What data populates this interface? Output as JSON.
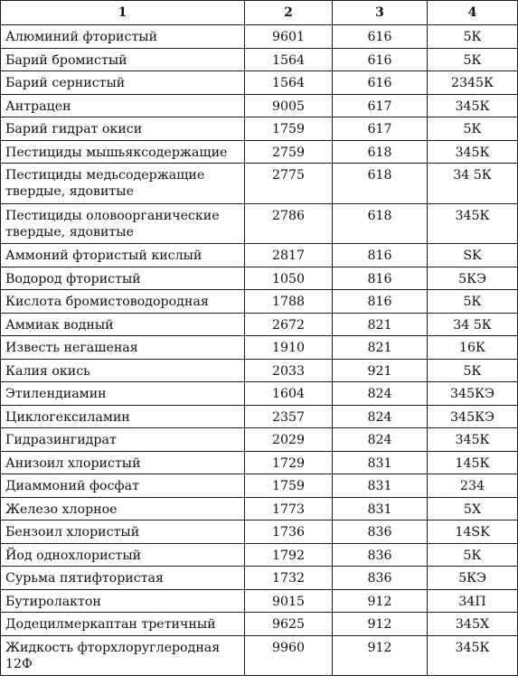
{
  "table": {
    "headers": [
      "1",
      "2",
      "3",
      "4"
    ],
    "rows": [
      {
        "name": "Алюминий фтористый",
        "c2": "9601",
        "c3": "616",
        "c4": "5К"
      },
      {
        "name": "Барий бромистый",
        "c2": "1564",
        "c3": "616",
        "c4": "5К"
      },
      {
        "name": "Барий сернистый",
        "c2": "1564",
        "c3": "616",
        "c4": "2345К"
      },
      {
        "name": "Антрацен",
        "c2": "9005",
        "c3": "617",
        "c4": "345К"
      },
      {
        "name": "Барий гидрат окиси",
        "c2": "1759",
        "c3": "617",
        "c4": "5К"
      },
      {
        "name": "Пестициды мышьяксодержащие",
        "c2": "2759",
        "c3": "618",
        "c4": "345К"
      },
      {
        "name": "Пестициды медьсодержащие твердые, ядовитые",
        "c2": "2775",
        "c3": "618",
        "c4": "34 5К"
      },
      {
        "name": "Пестициды оловоорганические твердые, ядовитые",
        "c2": "2786",
        "c3": "618",
        "c4": "345К"
      },
      {
        "name": "Аммоний фтористый кислый",
        "c2": "2817",
        "c3": "816",
        "c4": "SK"
      },
      {
        "name": "Водород фтористый",
        "c2": "1050",
        "c3": "816",
        "c4": "5КЭ"
      },
      {
        "name": "Кислота бромистоводородная",
        "c2": "1788",
        "c3": "816",
        "c4": "5К"
      },
      {
        "name": "Аммиак водный",
        "c2": "2672",
        "c3": "821",
        "c4": "34 5К"
      },
      {
        "name": "Известь негашеная",
        "c2": "1910",
        "c3": "821",
        "c4": "16К"
      },
      {
        "name": "Калия окись",
        "c2": "2033",
        "c3": "921",
        "c4": "5К"
      },
      {
        "name": "Этилендиамин",
        "c2": "1604",
        "c3": "824",
        "c4": "345КЭ"
      },
      {
        "name": "Циклогексиламин",
        "c2": "2357",
        "c3": "824",
        "c4": "345КЭ"
      },
      {
        "name": "Гидразингидрат",
        "c2": "2029",
        "c3": "824",
        "c4": "345К"
      },
      {
        "name": "Анизоил хлористый",
        "c2": "1729",
        "c3": "831",
        "c4": "145К"
      },
      {
        "name": "Диаммоний фосфат",
        "c2": "1759",
        "c3": "831",
        "c4": "234"
      },
      {
        "name": "Железо хлорное",
        "c2": "1773",
        "c3": "831",
        "c4": "5Х"
      },
      {
        "name": "Бензоил хлористый",
        "c2": "1736",
        "c3": "836",
        "c4": "14SK"
      },
      {
        "name": "Йод однохлористый",
        "c2": "1792",
        "c3": "836",
        "c4": "5К"
      },
      {
        "name": "Сурьма пятифтористая",
        "c2": "1732",
        "c3": "836",
        "c4": "5КЭ"
      },
      {
        "name": "Бутиролактон",
        "c2": "9015",
        "c3": "912",
        "c4": "34П"
      },
      {
        "name": "Додецилмеркаптан третичный",
        "c2": "9625",
        "c3": "912",
        "c4": "345Х"
      },
      {
        "name": "Жидкость фторхлоруглеродная 12Ф",
        "c2": "9960",
        "c3": "912",
        "c4": "345К"
      }
    ]
  }
}
